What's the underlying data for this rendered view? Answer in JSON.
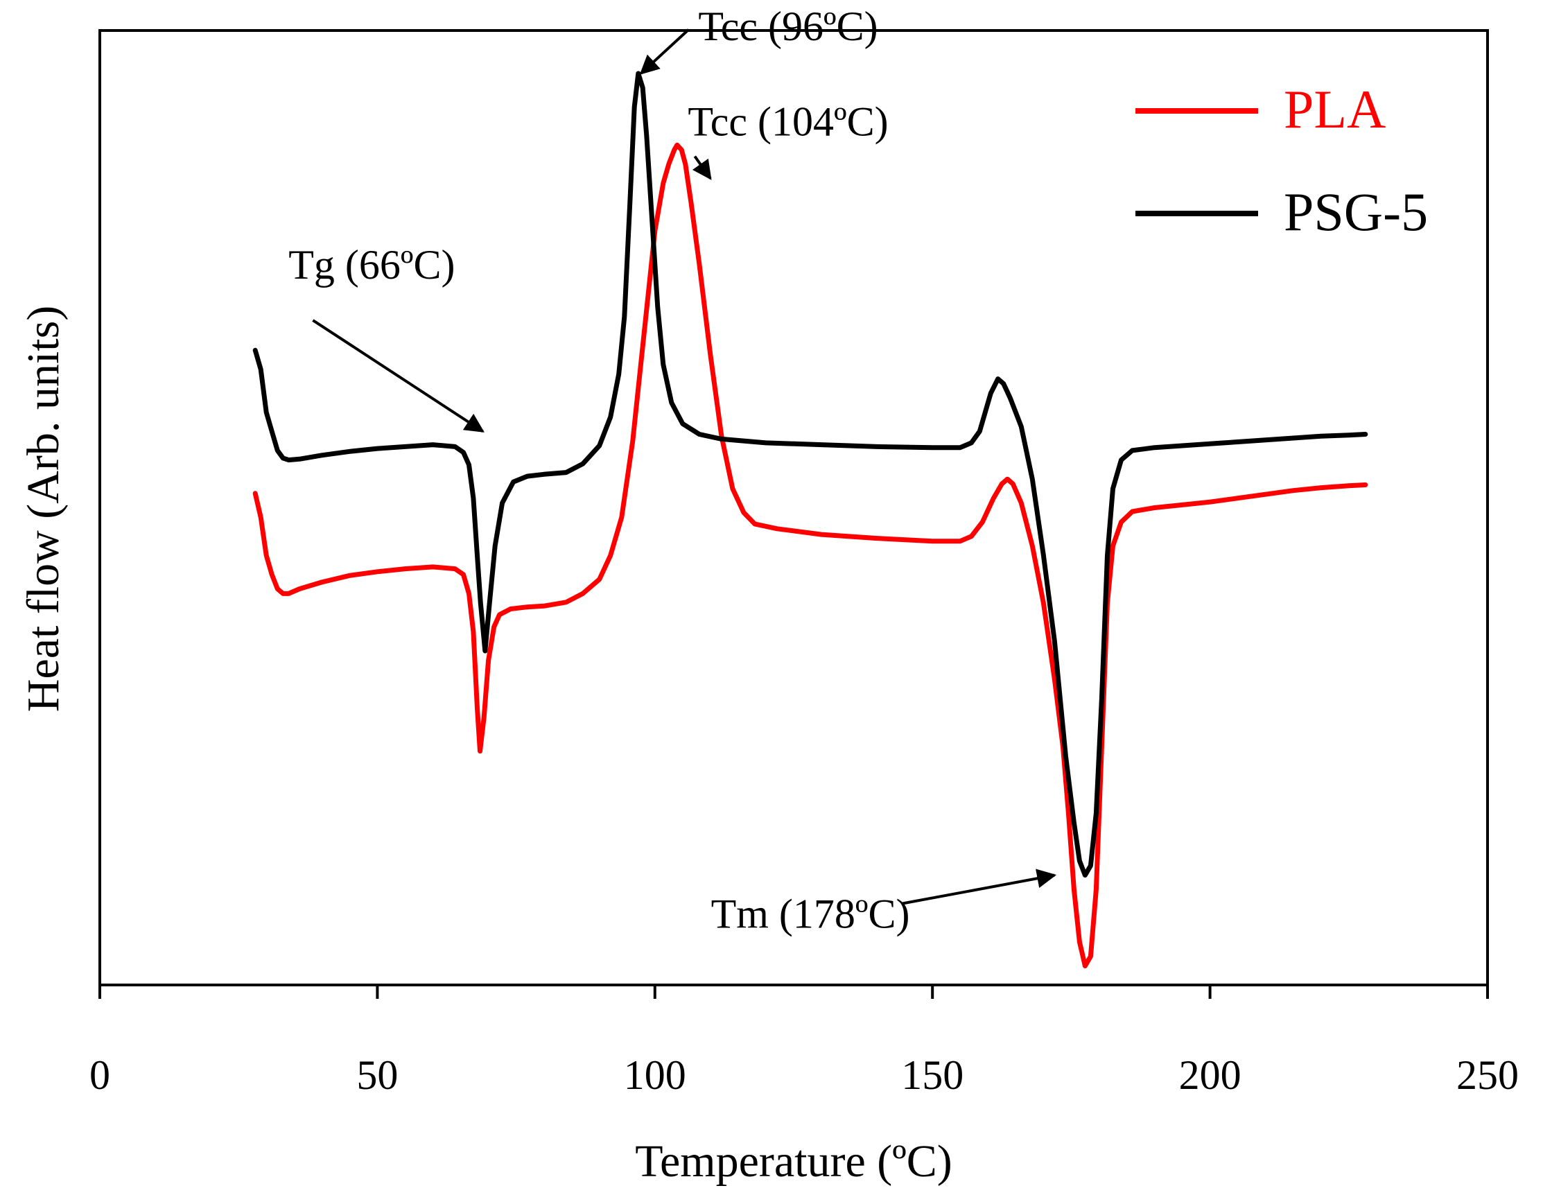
{
  "chart_data": {
    "type": "line",
    "title": "",
    "xlabel": "Temperature (ºC)",
    "ylabel": "Heat flow (Arb. units)",
    "xlim": [
      0,
      250
    ],
    "ylim": [
      0,
      100
    ],
    "xticks": [
      0,
      50,
      100,
      150,
      200,
      250
    ],
    "xtick_labels": [
      "0",
      "50",
      "100",
      "150",
      "200",
      "250"
    ],
    "grid": false,
    "legend_position": "top-right",
    "series": [
      {
        "name": "PLA",
        "color": "#ff0000",
        "points": [
          [
            28,
            51.5
          ],
          [
            29,
            49
          ],
          [
            30,
            45
          ],
          [
            31,
            43
          ],
          [
            32,
            41.5
          ],
          [
            33,
            41
          ],
          [
            34,
            41
          ],
          [
            36,
            41.5
          ],
          [
            40,
            42.2
          ],
          [
            45,
            42.9
          ],
          [
            50,
            43.3
          ],
          [
            55,
            43.6
          ],
          [
            60,
            43.8
          ],
          [
            64,
            43.6
          ],
          [
            65.5,
            43
          ],
          [
            66.5,
            41
          ],
          [
            67.3,
            37
          ],
          [
            68.0,
            29
          ],
          [
            68.5,
            24.5
          ],
          [
            69.2,
            28
          ],
          [
            70.0,
            34
          ],
          [
            71,
            37.5
          ],
          [
            72,
            38.8
          ],
          [
            74,
            39.4
          ],
          [
            77,
            39.6
          ],
          [
            80,
            39.7
          ],
          [
            84,
            40.1
          ],
          [
            87,
            41
          ],
          [
            90,
            42.5
          ],
          [
            92,
            45
          ],
          [
            94,
            49
          ],
          [
            96,
            57
          ],
          [
            98,
            68
          ],
          [
            100,
            79
          ],
          [
            101.5,
            84
          ],
          [
            102.5,
            86
          ],
          [
            103.5,
            87.5
          ],
          [
            104,
            88
          ],
          [
            104.8,
            87.5
          ],
          [
            105.5,
            86
          ],
          [
            106.5,
            82
          ],
          [
            108,
            75.5
          ],
          [
            110,
            66
          ],
          [
            112,
            57.5
          ],
          [
            114,
            52
          ],
          [
            116,
            49.5
          ],
          [
            118,
            48.3
          ],
          [
            122,
            47.8
          ],
          [
            130,
            47.2
          ],
          [
            140,
            46.8
          ],
          [
            150,
            46.5
          ],
          [
            155,
            46.5
          ],
          [
            157,
            47
          ],
          [
            159,
            48.5
          ],
          [
            161,
            51
          ],
          [
            162.5,
            52.5
          ],
          [
            163.5,
            53
          ],
          [
            164.5,
            52.5
          ],
          [
            166,
            50.5
          ],
          [
            168,
            46
          ],
          [
            170,
            40
          ],
          [
            172,
            32
          ],
          [
            173.5,
            25
          ],
          [
            174.5,
            18
          ],
          [
            175.5,
            10
          ],
          [
            176.5,
            4.5
          ],
          [
            177.5,
            2
          ],
          [
            178.5,
            3
          ],
          [
            179.5,
            10
          ],
          [
            180.5,
            25
          ],
          [
            181.5,
            40
          ],
          [
            182.5,
            46
          ],
          [
            184,
            48.5
          ],
          [
            186,
            49.6
          ],
          [
            190,
            50
          ],
          [
            195,
            50.3
          ],
          [
            200,
            50.6
          ],
          [
            205,
            51
          ],
          [
            210,
            51.4
          ],
          [
            215,
            51.8
          ],
          [
            220,
            52.1
          ],
          [
            225,
            52.3
          ],
          [
            228,
            52.4
          ]
        ]
      },
      {
        "name": "PSG-5",
        "color": "#000000",
        "points": [
          [
            28,
            66.5
          ],
          [
            29,
            64.5
          ],
          [
            30,
            60
          ],
          [
            31,
            58
          ],
          [
            32,
            56
          ],
          [
            33,
            55.2
          ],
          [
            34,
            55
          ],
          [
            36,
            55.1
          ],
          [
            40,
            55.5
          ],
          [
            45,
            55.9
          ],
          [
            50,
            56.2
          ],
          [
            55,
            56.4
          ],
          [
            60,
            56.6
          ],
          [
            64,
            56.4
          ],
          [
            65.5,
            55.8
          ],
          [
            66.5,
            54.5
          ],
          [
            67.3,
            51
          ],
          [
            68.0,
            45
          ],
          [
            68.6,
            40
          ],
          [
            69.4,
            35
          ],
          [
            70.2,
            40
          ],
          [
            71.2,
            46
          ],
          [
            72.5,
            50.5
          ],
          [
            74.5,
            52.7
          ],
          [
            77,
            53.3
          ],
          [
            80,
            53.5
          ],
          [
            84,
            53.7
          ],
          [
            87,
            54.6
          ],
          [
            90,
            56.5
          ],
          [
            92,
            59.5
          ],
          [
            93.5,
            64
          ],
          [
            94.5,
            70
          ],
          [
            95.5,
            82
          ],
          [
            96.3,
            92
          ],
          [
            97,
            95.5
          ],
          [
            97.8,
            94
          ],
          [
            98.5,
            89
          ],
          [
            99.5,
            80
          ],
          [
            100.5,
            71
          ],
          [
            101.5,
            65
          ],
          [
            103,
            61
          ],
          [
            105,
            58.8
          ],
          [
            108,
            57.7
          ],
          [
            112,
            57.2
          ],
          [
            120,
            56.8
          ],
          [
            130,
            56.6
          ],
          [
            140,
            56.4
          ],
          [
            150,
            56.3
          ],
          [
            155,
            56.3
          ],
          [
            157,
            56.8
          ],
          [
            158.5,
            58
          ],
          [
            159.5,
            60
          ],
          [
            160.5,
            62
          ],
          [
            161.8,
            63.5
          ],
          [
            162.8,
            63
          ],
          [
            164,
            61.5
          ],
          [
            166,
            58.5
          ],
          [
            168,
            53
          ],
          [
            170,
            45
          ],
          [
            172,
            36
          ],
          [
            174,
            24
          ],
          [
            175.5,
            17
          ],
          [
            176.5,
            13
          ],
          [
            177.5,
            11.5
          ],
          [
            178.5,
            12.5
          ],
          [
            179.5,
            18
          ],
          [
            180.5,
            30
          ],
          [
            181.5,
            45
          ],
          [
            182.5,
            52
          ],
          [
            184,
            55
          ],
          [
            186,
            56
          ],
          [
            190,
            56.3
          ],
          [
            195,
            56.5
          ],
          [
            200,
            56.7
          ],
          [
            205,
            56.9
          ],
          [
            210,
            57.1
          ],
          [
            215,
            57.3
          ],
          [
            220,
            57.5
          ],
          [
            225,
            57.6
          ],
          [
            228,
            57.7
          ]
        ]
      }
    ],
    "annotations": [
      {
        "text": "Tg (66ºC)",
        "at": [
          69,
          58
        ],
        "label_at": [
          49,
          74
        ]
      },
      {
        "text": "Tcc (96ºC)",
        "at": [
          97.5,
          95.5
        ],
        "label_at": [
          124,
          99
        ]
      },
      {
        "text": "Tcc (104ºC)",
        "at": [
          110,
          84.5
        ],
        "label_at": [
          124,
          89
        ]
      },
      {
        "text": "Tm (178ºC)",
        "at": [
          172,
          11.5
        ],
        "label_at": [
          128,
          6
        ]
      }
    ]
  }
}
